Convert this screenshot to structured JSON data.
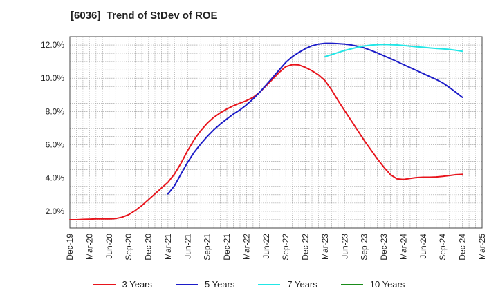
{
  "chart_data": {
    "type": "line",
    "title": "[6036]  Trend of StDev of ROE",
    "xlabel": "",
    "ylabel": "",
    "x_tick_labels": [
      "Dec-19",
      "Mar-20",
      "Jun-20",
      "Sep-20",
      "Dec-20",
      "Mar-21",
      "Jun-21",
      "Sep-21",
      "Dec-21",
      "Mar-22",
      "Jun-22",
      "Sep-22",
      "Dec-22",
      "Mar-23",
      "Jun-23",
      "Sep-23",
      "Dec-23",
      "Mar-24",
      "Jun-24",
      "Sep-24",
      "Dec-24",
      "Mar-25"
    ],
    "y_tick_labels": [
      "2.0%",
      "4.0%",
      "6.0%",
      "8.0%",
      "10.0%",
      "12.0%"
    ],
    "y_ticks": [
      2,
      4,
      6,
      8,
      10,
      12
    ],
    "ylim": [
      1.0,
      12.5
    ],
    "grid": true,
    "legend_position": "bottom",
    "series": [
      {
        "name": "3 Years",
        "color": "#e8141c",
        "x": [
          "Dec-19",
          "Jan-20",
          "Feb-20",
          "Mar-20",
          "Apr-20",
          "May-20",
          "Jun-20",
          "Jul-20",
          "Aug-20",
          "Sep-20",
          "Oct-20",
          "Nov-20",
          "Dec-20",
          "Jan-21",
          "Feb-21",
          "Mar-21",
          "Apr-21",
          "May-21",
          "Jun-21",
          "Jul-21",
          "Aug-21",
          "Sep-21",
          "Oct-21",
          "Nov-21",
          "Dec-21",
          "Jan-22",
          "Feb-22",
          "Mar-22",
          "Apr-22",
          "May-22",
          "Jun-22",
          "Jul-22",
          "Aug-22",
          "Sep-22",
          "Oct-22",
          "Nov-22",
          "Dec-22",
          "Jan-23",
          "Feb-23",
          "Mar-23",
          "Apr-23",
          "May-23",
          "Jun-23",
          "Jul-23",
          "Aug-23",
          "Sep-23",
          "Oct-23",
          "Nov-23",
          "Dec-23",
          "Jan-24",
          "Feb-24",
          "Mar-24",
          "Apr-24",
          "May-24",
          "Jun-24",
          "Jul-24",
          "Aug-24",
          "Sep-24",
          "Oct-24",
          "Nov-24",
          "Dec-24"
        ],
        "values": [
          1.5,
          1.5,
          1.52,
          1.53,
          1.55,
          1.55,
          1.55,
          1.57,
          1.65,
          1.8,
          2.05,
          2.35,
          2.7,
          3.05,
          3.4,
          3.75,
          4.25,
          4.9,
          5.65,
          6.3,
          6.85,
          7.3,
          7.65,
          7.92,
          8.15,
          8.35,
          8.5,
          8.65,
          8.85,
          9.15,
          9.55,
          9.95,
          10.35,
          10.7,
          10.82,
          10.8,
          10.65,
          10.45,
          10.2,
          9.85,
          9.3,
          8.65,
          8.05,
          7.45,
          6.85,
          6.25,
          5.7,
          5.15,
          4.65,
          4.2,
          3.95,
          3.92,
          3.98,
          4.03,
          4.05,
          4.05,
          4.07,
          4.1,
          4.15,
          4.2,
          4.22
        ]
      },
      {
        "name": "5 Years",
        "color": "#1c1cc8",
        "x": [
          "Mar-21",
          "Apr-21",
          "May-21",
          "Jun-21",
          "Jul-21",
          "Aug-21",
          "Sep-21",
          "Oct-21",
          "Nov-21",
          "Dec-21",
          "Jan-22",
          "Feb-22",
          "Mar-22",
          "Apr-22",
          "May-22",
          "Jun-22",
          "Jul-22",
          "Aug-22",
          "Sep-22",
          "Oct-22",
          "Nov-22",
          "Dec-22",
          "Jan-23",
          "Feb-23",
          "Mar-23",
          "Apr-23",
          "May-23",
          "Jun-23",
          "Jul-23",
          "Aug-23",
          "Sep-23",
          "Oct-23",
          "Nov-23",
          "Dec-23",
          "Jan-24",
          "Feb-24",
          "Mar-24",
          "Apr-24",
          "May-24",
          "Jun-24",
          "Jul-24",
          "Aug-24",
          "Sep-24",
          "Oct-24",
          "Nov-24",
          "Dec-24"
        ],
        "values": [
          3.05,
          3.55,
          4.25,
          4.95,
          5.55,
          6.05,
          6.5,
          6.9,
          7.25,
          7.55,
          7.85,
          8.1,
          8.4,
          8.75,
          9.15,
          9.6,
          10.05,
          10.5,
          10.95,
          11.3,
          11.55,
          11.78,
          11.95,
          12.05,
          12.1,
          12.1,
          12.08,
          12.05,
          12.0,
          11.92,
          11.82,
          11.68,
          11.52,
          11.35,
          11.18,
          11.0,
          10.82,
          10.64,
          10.46,
          10.28,
          10.1,
          9.92,
          9.72,
          9.45,
          9.15,
          8.85
        ]
      },
      {
        "name": "7 Years",
        "color": "#22e6e6",
        "x": [
          "Mar-23",
          "Apr-23",
          "May-23",
          "Jun-23",
          "Jul-23",
          "Aug-23",
          "Sep-23",
          "Oct-23",
          "Nov-23",
          "Dec-23",
          "Jan-24",
          "Feb-24",
          "Mar-24",
          "Apr-24",
          "May-24",
          "Jun-24",
          "Jul-24",
          "Aug-24",
          "Sep-24",
          "Oct-24",
          "Nov-24",
          "Dec-24"
        ],
        "values": [
          11.3,
          11.42,
          11.55,
          11.67,
          11.77,
          11.86,
          11.94,
          11.99,
          12.02,
          12.03,
          12.02,
          12.0,
          11.97,
          11.93,
          11.89,
          11.86,
          11.82,
          11.79,
          11.76,
          11.73,
          11.68,
          11.62
        ]
      },
      {
        "name": "10 Years",
        "color": "#1a8c1a",
        "x": [],
        "values": []
      }
    ]
  }
}
